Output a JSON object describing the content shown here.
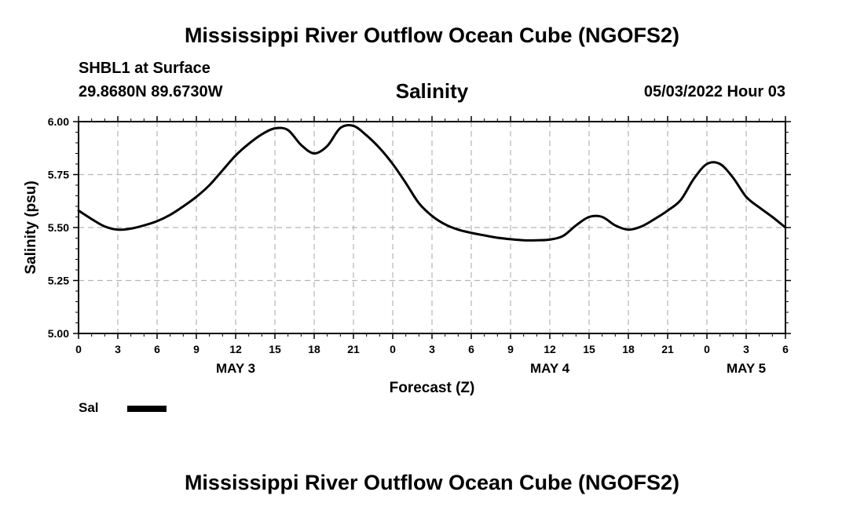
{
  "header": {
    "title": "Mississippi River Outflow Ocean Cube (NGOFS2)",
    "station": "SHBL1 at Surface",
    "location": "29.8680N  89.6730W",
    "datetime": "05/03/2022 Hour 03"
  },
  "footer": {
    "title": "Mississippi River Outflow Ocean Cube (NGOFS2)"
  },
  "chart_data": {
    "type": "line",
    "title": "Salinity",
    "xlabel": "Forecast (Z)",
    "ylabel": "Salinity (psu)",
    "xlim": [
      0,
      54
    ],
    "ylim": [
      5.0,
      6.0
    ],
    "yticks": [
      5.0,
      5.25,
      5.5,
      5.75,
      6.0
    ],
    "ytick_labels": [
      "5.00",
      "5.25",
      "5.50",
      "5.75",
      "6.00"
    ],
    "xtick_hours": [
      0,
      3,
      6,
      9,
      12,
      15,
      18,
      21,
      24,
      27,
      30,
      33,
      36,
      39,
      42,
      45,
      48,
      51,
      54
    ],
    "xtick_labels": [
      "0",
      "3",
      "6",
      "9",
      "12",
      "15",
      "18",
      "21",
      "0",
      "3",
      "6",
      "9",
      "12",
      "15",
      "18",
      "21",
      "0",
      "3",
      "6"
    ],
    "day_labels": [
      {
        "hour": 12,
        "label": "MAY 3"
      },
      {
        "hour": 36,
        "label": "MAY 4"
      },
      {
        "hour": 51,
        "label": "MAY 5"
      }
    ],
    "grid": true,
    "legend_position": "bottom-left",
    "series": [
      {
        "name": "Sal",
        "color": "#000000",
        "x": [
          0,
          1,
          2,
          3,
          4,
          5,
          6,
          7,
          8,
          9,
          10,
          11,
          12,
          13,
          14,
          15,
          16,
          17,
          18,
          19,
          20,
          21,
          22,
          23,
          24,
          25,
          26,
          27,
          28,
          29,
          30,
          31,
          32,
          33,
          34,
          35,
          36,
          37,
          38,
          39,
          40,
          41,
          42,
          43,
          44,
          45,
          46,
          47,
          48,
          49,
          50,
          51,
          52,
          53,
          54
        ],
        "y": [
          5.58,
          5.54,
          5.505,
          5.49,
          5.495,
          5.51,
          5.53,
          5.56,
          5.6,
          5.645,
          5.7,
          5.77,
          5.84,
          5.895,
          5.94,
          5.968,
          5.96,
          5.89,
          5.85,
          5.885,
          5.97,
          5.98,
          5.935,
          5.875,
          5.8,
          5.71,
          5.615,
          5.555,
          5.515,
          5.49,
          5.475,
          5.463,
          5.452,
          5.445,
          5.44,
          5.44,
          5.443,
          5.46,
          5.51,
          5.55,
          5.55,
          5.51,
          5.49,
          5.505,
          5.54,
          5.58,
          5.63,
          5.73,
          5.8,
          5.8,
          5.735,
          5.645,
          5.595,
          5.55,
          5.5
        ]
      }
    ]
  }
}
